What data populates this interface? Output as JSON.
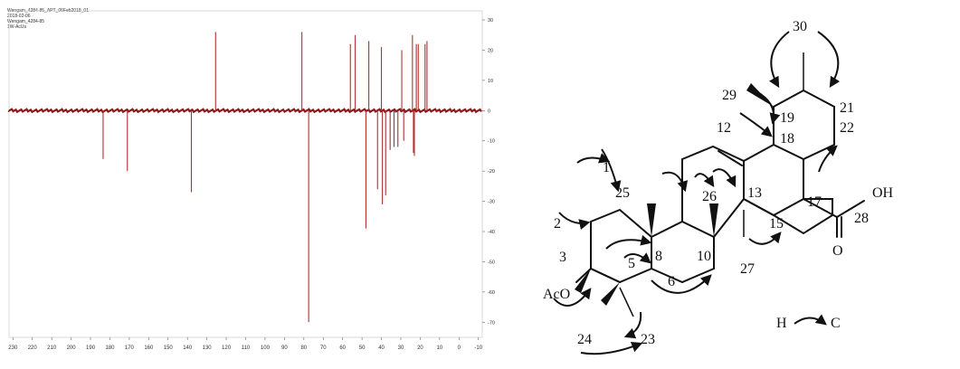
{
  "spectrum": {
    "header_lines": [
      "Wengam_4284-85_APT_06Feb2018_01",
      "2018-02-06",
      "Wengam_4284-85",
      "1W-AcUs"
    ],
    "x_ticks": [
      "230",
      "220",
      "210",
      "200",
      "190",
      "180",
      "170",
      "160",
      "150",
      "140",
      "130",
      "120",
      "110",
      "100",
      "90",
      "80",
      "70",
      "60",
      "50",
      "40",
      "30",
      "20",
      "10",
      "0",
      "-10"
    ],
    "y_ticks": [
      "30",
      "20",
      "10",
      "0",
      "-10",
      "-20",
      "-30",
      "-40",
      "-50",
      "-60",
      "-70"
    ],
    "colors": {
      "trace": "#8b1a1a",
      "peak": "#b03030"
    }
  },
  "chart_data": {
    "type": "line",
    "title": "",
    "xlabel": "",
    "ylabel": "",
    "xlim": [
      232,
      -12
    ],
    "ylim": [
      -75,
      33
    ],
    "x_reversed": true,
    "peaks": [
      {
        "x": 183.5,
        "y": -16
      },
      {
        "x": 171.0,
        "y": -20
      },
      {
        "x": 138.0,
        "y": -27
      },
      {
        "x": 125.5,
        "y": 26
      },
      {
        "x": 81.0,
        "y": 26
      },
      {
        "x": 77.5,
        "y": -70
      },
      {
        "x": 56.0,
        "y": 22
      },
      {
        "x": 53.5,
        "y": 25
      },
      {
        "x": 48.0,
        "y": -39
      },
      {
        "x": 46.5,
        "y": 23
      },
      {
        "x": 42.0,
        "y": -26
      },
      {
        "x": 40.0,
        "y": 21
      },
      {
        "x": 39.5,
        "y": -31
      },
      {
        "x": 37.8,
        "y": -28
      },
      {
        "x": 35.5,
        "y": -13
      },
      {
        "x": 33.5,
        "y": -12
      },
      {
        "x": 31.5,
        "y": -12
      },
      {
        "x": 29.5,
        "y": 20
      },
      {
        "x": 28.5,
        "y": -10
      },
      {
        "x": 24.0,
        "y": 25
      },
      {
        "x": 23.5,
        "y": -14
      },
      {
        "x": 23.0,
        "y": -15
      },
      {
        "x": 22.0,
        "y": 22
      },
      {
        "x": 21.0,
        "y": 22
      },
      {
        "x": 17.5,
        "y": 22
      },
      {
        "x": 16.5,
        "y": 23
      }
    ]
  },
  "structure": {
    "labels": {
      "c1": "1",
      "c2": "2",
      "c3": "3",
      "c5": "5",
      "c6": "6",
      "c8": "8",
      "c10": "10",
      "c12": "12",
      "c13": "13",
      "c15": "15",
      "c17": "17",
      "c18": "18",
      "c19": "19",
      "c21": "21",
      "c22": "22",
      "c23": "23",
      "c24": "24",
      "c25": "25",
      "c26": "26",
      "c27": "27",
      "c28": "28",
      "c29": "29",
      "c30": "30",
      "oh": "OH",
      "o": "O",
      "aco": "AcO"
    },
    "legend": {
      "h": "H",
      "c": "C"
    }
  }
}
